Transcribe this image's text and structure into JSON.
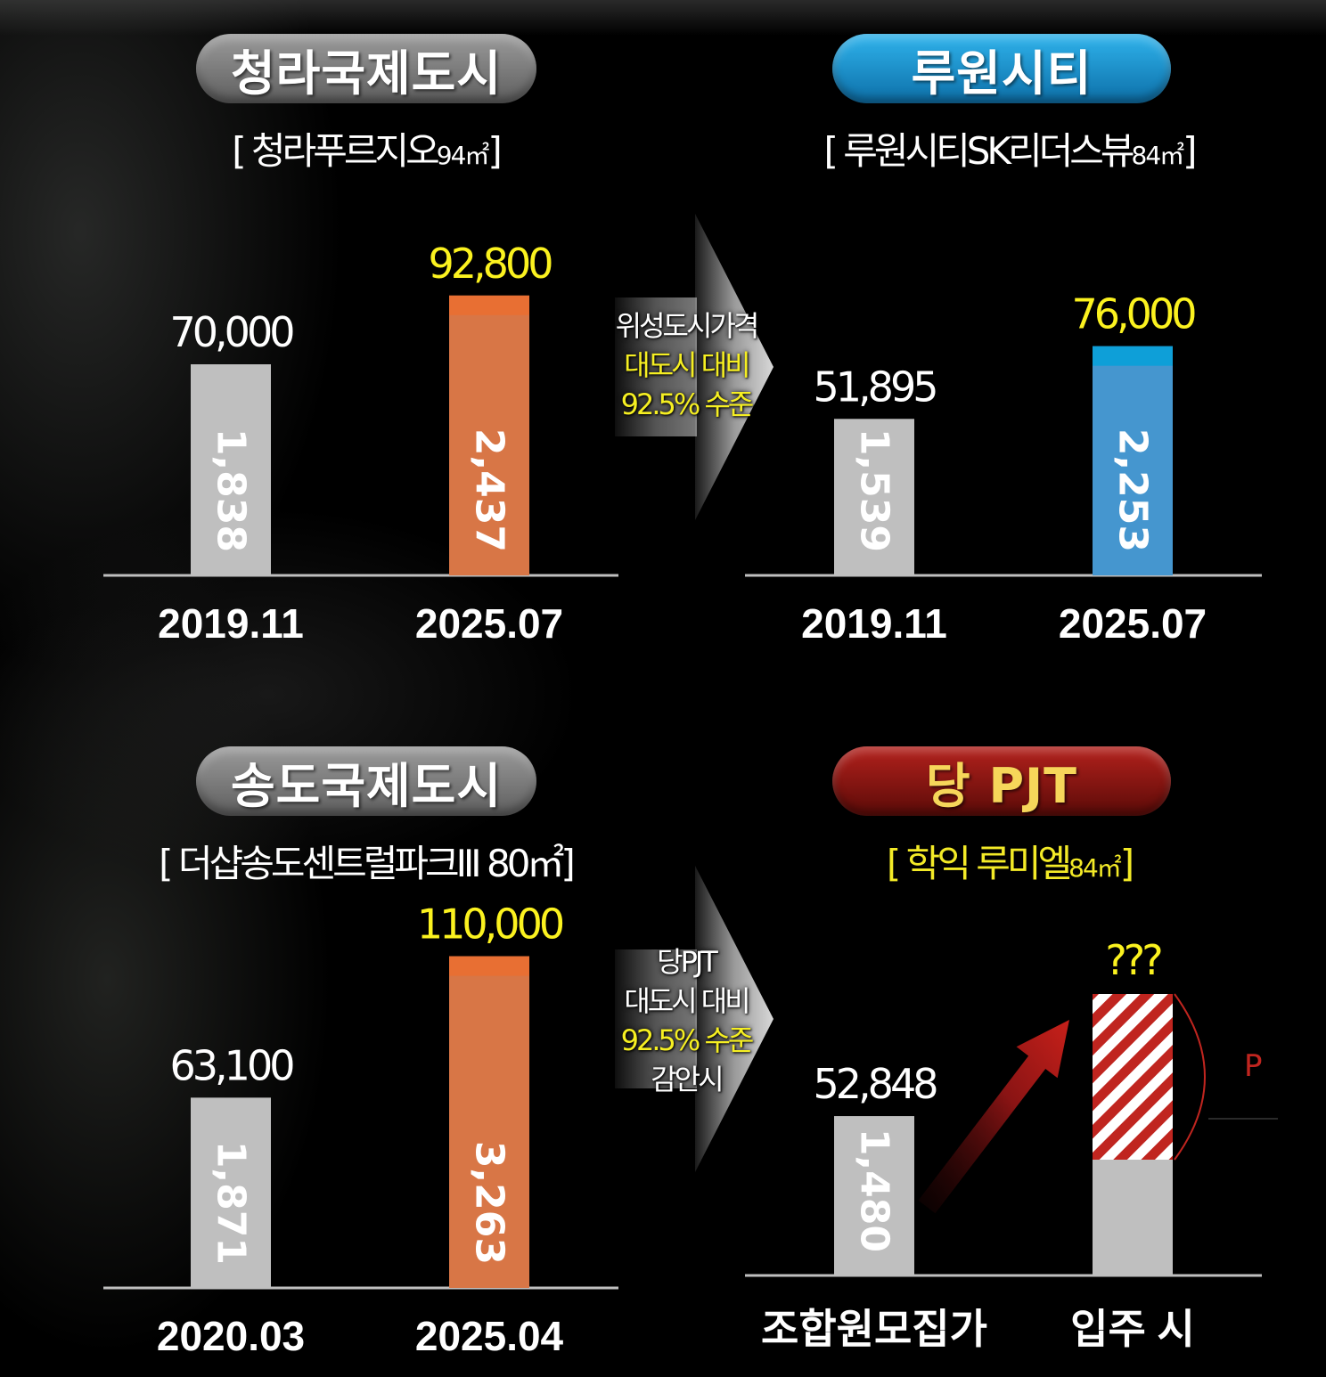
{
  "panels": [
    {
      "title": "청라국제도시",
      "subtitle": "[ 청라푸르지오",
      "subtitle_area": "94㎡",
      "subtitle_end": "]",
      "chart_data": {
        "type": "bar",
        "categories": [
          "2019.11",
          "2025.07"
        ],
        "values": [
          70000,
          92800
        ],
        "value_labels": [
          "70,000",
          "92,800"
        ],
        "inner_labels": [
          "1,838",
          "2,437"
        ],
        "colors": [
          "#bfbfbf",
          "#d87646"
        ],
        "cap_colors": [
          "",
          "#e86f33"
        ],
        "ylim": [
          0,
          120000
        ]
      }
    },
    {
      "title": "루원시티",
      "subtitle": "[ 루원시티SK리더스뷰",
      "subtitle_area": "84㎡",
      "subtitle_end": "]",
      "chart_data": {
        "type": "bar",
        "categories": [
          "2019.11",
          "2025.07"
        ],
        "values": [
          51895,
          76000
        ],
        "value_labels": [
          "51,895",
          "76,000"
        ],
        "inner_labels": [
          "1,539",
          "2,253"
        ],
        "colors": [
          "#bfbfbf",
          "#4596cf"
        ],
        "cap_colors": [
          "",
          "#0e9fd8"
        ],
        "ylim": [
          0,
          120000
        ]
      }
    },
    {
      "title": "송도국제도시",
      "subtitle": "[ 더샵송도센트럴파크Ⅲ 80㎡",
      "subtitle_area": "",
      "subtitle_end": "]",
      "chart_data": {
        "type": "bar",
        "categories": [
          "2020.03",
          "2025.04"
        ],
        "values": [
          63100,
          110000
        ],
        "value_labels": [
          "63,100",
          "110,000"
        ],
        "inner_labels": [
          "1,871",
          "3,263"
        ],
        "colors": [
          "#bfbfbf",
          "#d87646"
        ],
        "cap_colors": [
          "",
          "#e86f33"
        ],
        "ylim": [
          0,
          120000
        ]
      }
    },
    {
      "title": "당 PJT",
      "subtitle": "[ 학익 루미엘",
      "subtitle_area": "84㎡",
      "subtitle_end": "]",
      "chart_data": {
        "type": "bar",
        "categories": [
          "조합원모집가",
          "입주 시"
        ],
        "values": [
          52848,
          null
        ],
        "value_labels": [
          "52,848",
          "???"
        ],
        "inner_labels": [
          "1,480",
          ""
        ],
        "colors": [
          "#bfbfbf",
          "#bfbfbf"
        ],
        "premium_label": "P",
        "ylim": [
          0,
          120000
        ]
      }
    }
  ],
  "arrows": [
    {
      "lines": [
        {
          "text": "위성도시가격",
          "color": "white"
        },
        {
          "text": "대도시 대비",
          "color": "yellow"
        },
        {
          "text": "92.5% 수준",
          "color": "yellow"
        }
      ]
    },
    {
      "lines": [
        {
          "text": "당PJT",
          "color": "white"
        },
        {
          "text": "대도시 대비",
          "color": "white"
        },
        {
          "text": "92.5% 수준",
          "color": "yellow"
        },
        {
          "text": "감안시",
          "color": "white"
        }
      ]
    }
  ],
  "colors": {
    "pill_gray": "#7a7a7a",
    "pill_blue": "#1a8fcf",
    "pill_red": "#8a1612",
    "highlight_yellow": "#fbf21f"
  }
}
